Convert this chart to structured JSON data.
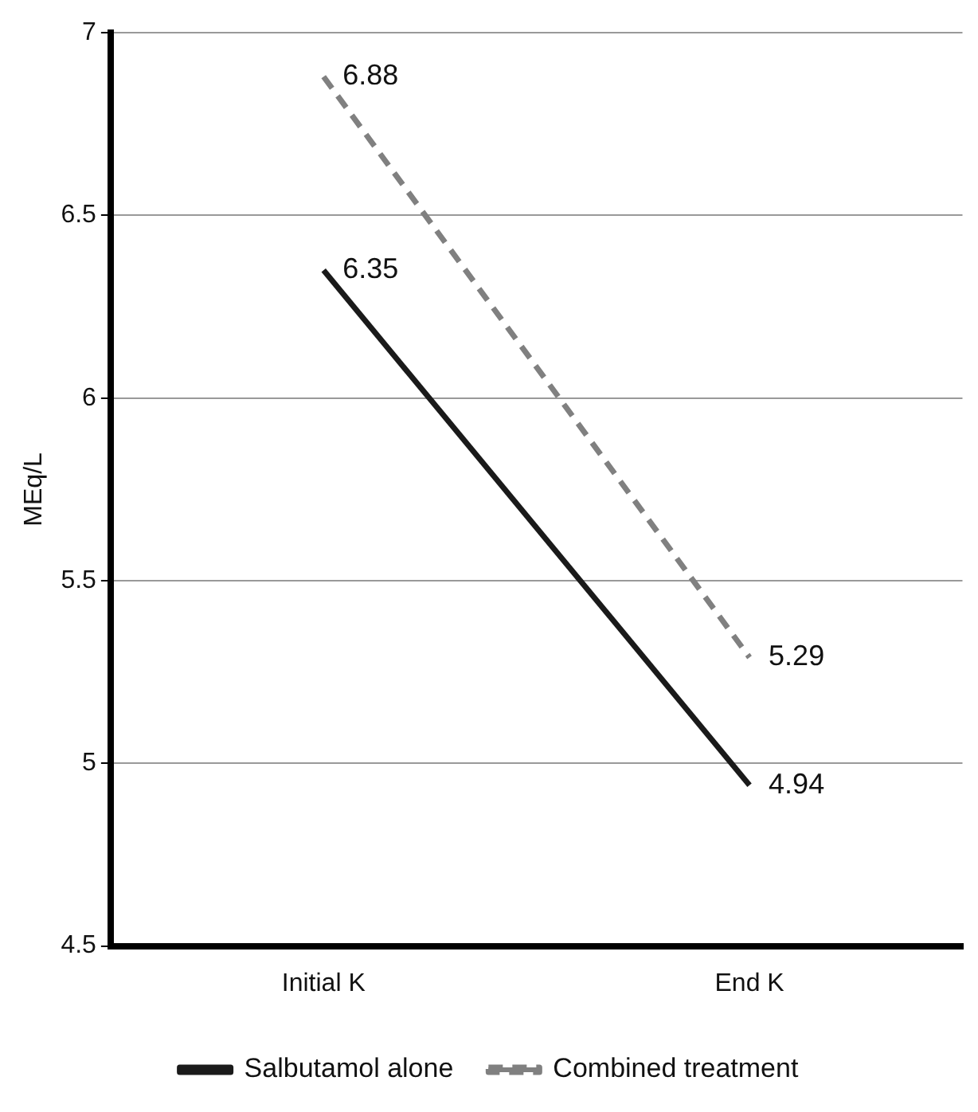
{
  "chart_data": {
    "type": "line",
    "ylabel": "MEq/L",
    "categories": [
      "Initial K",
      "End K"
    ],
    "series": [
      {
        "name": "Salbutamol alone",
        "color": "#1a1a1a",
        "values": [
          6.35,
          4.94
        ],
        "line_style": "solid"
      },
      {
        "name": "Combined treatment",
        "color": "#808080",
        "values": [
          6.88,
          5.29
        ],
        "line_style": "dashed"
      }
    ],
    "ylim": [
      4.5,
      7
    ],
    "yticks": [
      4.5,
      5,
      5.5,
      6,
      6.5,
      7
    ],
    "grid": "y",
    "legend": "bottom",
    "data_labels": true,
    "marker": "none"
  }
}
